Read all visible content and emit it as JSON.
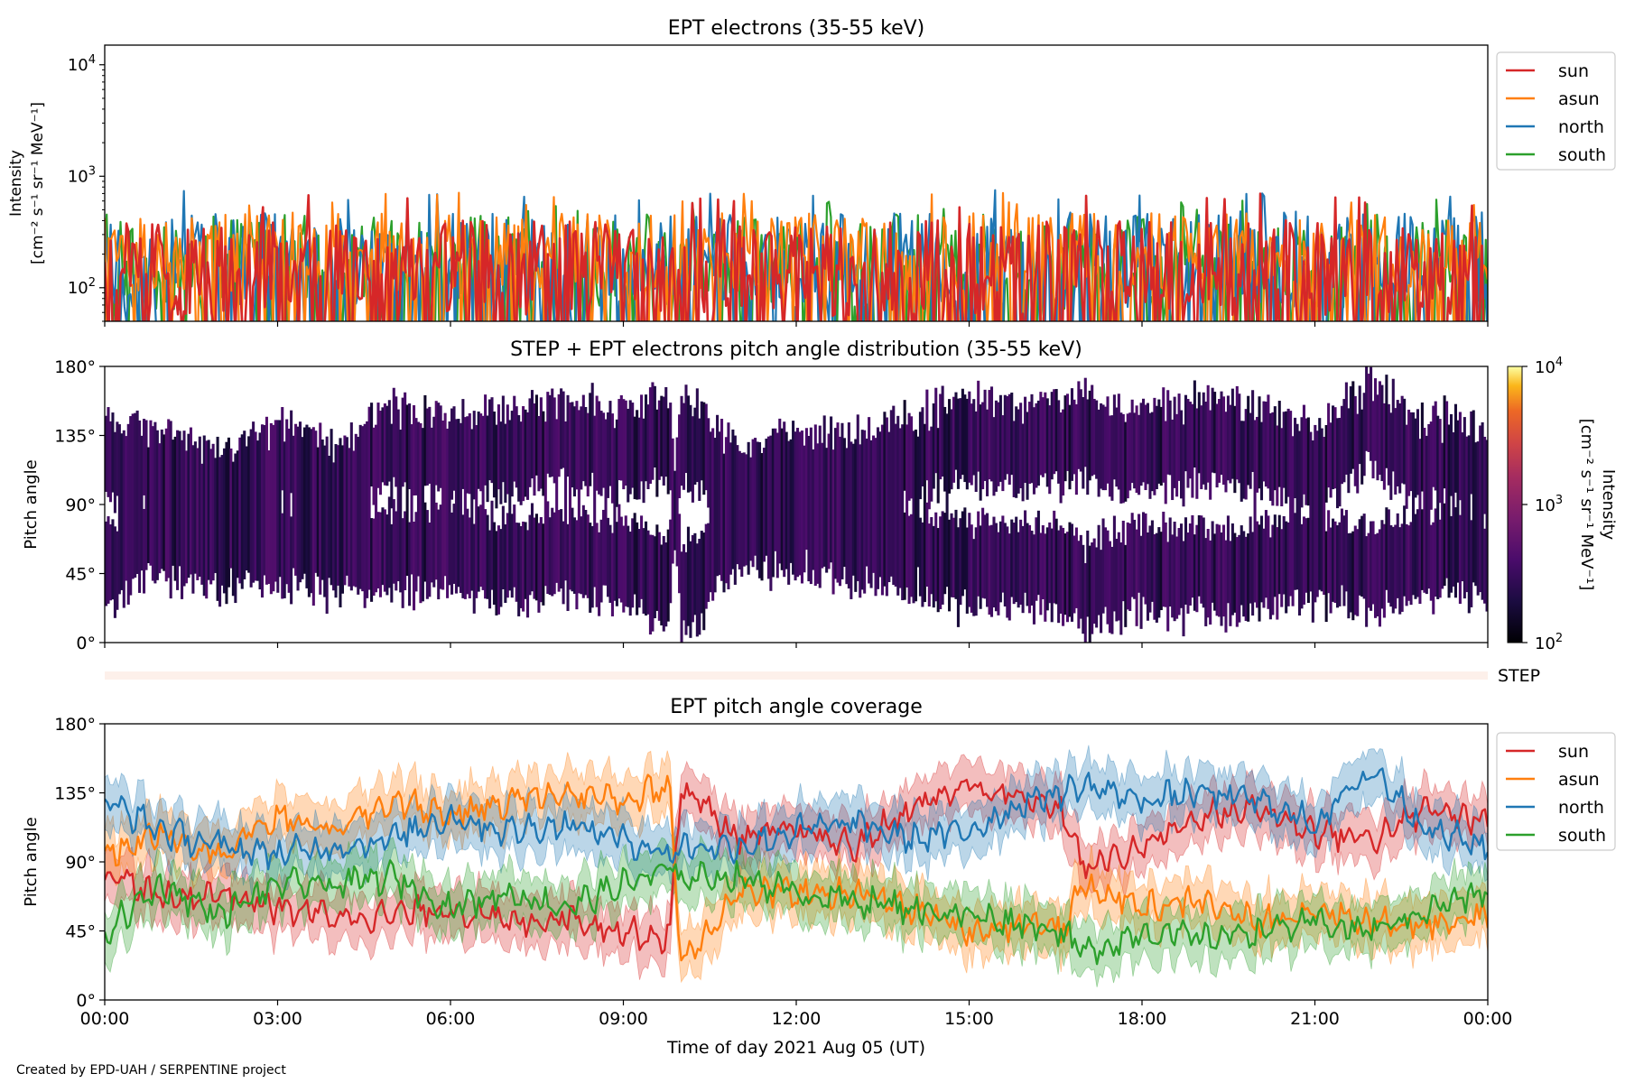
{
  "footer": "Created by EPD-UAH / SERPENTINE project",
  "chart_data": [
    {
      "type": "line",
      "title": "EPT electrons (35-55 keV)",
      "ylabel_line1": "Intensity",
      "ylabel_line2": "[cm⁻² s⁻¹ sr⁻¹ MeV⁻¹]",
      "yscale": "log",
      "ylim": [
        50,
        15000
      ],
      "yticks": [
        {
          "v": 100,
          "base": "10",
          "exp": "2"
        },
        {
          "v": 1000,
          "base": "10",
          "exp": "3"
        },
        {
          "v": 10000,
          "base": "10",
          "exp": "4"
        }
      ],
      "xlim": [
        "00:00",
        "24:00"
      ],
      "legend_placement": "outside-right-top",
      "series": [
        {
          "name": "sun",
          "color": "#d62728",
          "base": 150,
          "spread": 0.55,
          "max": 700
        },
        {
          "name": "asun",
          "color": "#ff7f0e",
          "base": 210,
          "spread": 0.45,
          "max": 720
        },
        {
          "name": "north",
          "color": "#1f77b4",
          "base": 180,
          "spread": 0.55,
          "max": 760
        },
        {
          "name": "south",
          "color": "#2ca02c",
          "base": 170,
          "spread": 0.55,
          "max": 650
        }
      ]
    },
    {
      "type": "heatmap",
      "title": "STEP + EPT electrons pitch angle distribution (35-55 keV)",
      "ylabel": "Pitch angle",
      "ylim": [
        0,
        180
      ],
      "yticks": [
        "0°",
        "45°",
        "90°",
        "135°",
        "180°"
      ],
      "colorbar": {
        "label_line1": "Intensity",
        "label_line2": "[cm⁻² s⁻¹ sr⁻¹ MeV⁻¹]",
        "scale": "log",
        "range": [
          100,
          10000
        ],
        "ticks": [
          {
            "v": 100,
            "base": "10",
            "exp": "2"
          },
          {
            "v": 1000,
            "base": "10",
            "exp": "3"
          },
          {
            "v": 10000,
            "base": "10",
            "exp": "4"
          }
        ],
        "colormap": "inferno"
      },
      "values_range": [
        150,
        450
      ]
    },
    {
      "type": "band",
      "label": "STEP",
      "color": "#fdf0ea"
    },
    {
      "type": "line",
      "title": "EPT pitch angle coverage",
      "ylabel": "Pitch angle",
      "xlabel": "Time of day 2021 Aug 05 (UT)",
      "ylim": [
        0,
        180
      ],
      "yticks": [
        "0°",
        "45°",
        "90°",
        "135°",
        "180°"
      ],
      "xticks": [
        "00:00",
        "03:00",
        "06:00",
        "09:00",
        "12:00",
        "15:00",
        "18:00",
        "21:00",
        "00:00"
      ],
      "legend_placement": "outside-right-top",
      "series": [
        {
          "name": "sun",
          "color": "#d62728",
          "hours": [
            0,
            1,
            2,
            3,
            4,
            5,
            6,
            7,
            8,
            9,
            9.8,
            10,
            11,
            12,
            13,
            14,
            15,
            16,
            16.6,
            17,
            18,
            19,
            20,
            21,
            22,
            23,
            24
          ],
          "values": [
            85,
            65,
            70,
            60,
            55,
            55,
            60,
            50,
            55,
            45,
            40,
            140,
            105,
            110,
            100,
            125,
            140,
            130,
            125,
            85,
            100,
            120,
            125,
            110,
            105,
            125,
            115
          ]
        },
        {
          "name": "asun",
          "color": "#ff7f0e",
          "hours": [
            0,
            1,
            2,
            3,
            4,
            5,
            6,
            7,
            8,
            9,
            9.8,
            10,
            11,
            12,
            13,
            14,
            15,
            16,
            16.6,
            17,
            18,
            19,
            20,
            21,
            22,
            23,
            24
          ],
          "values": [
            95,
            110,
            95,
            120,
            110,
            130,
            120,
            130,
            135,
            130,
            140,
            25,
            70,
            70,
            70,
            60,
            45,
            50,
            45,
            75,
            60,
            65,
            50,
            60,
            50,
            50,
            55
          ]
        },
        {
          "name": "north",
          "color": "#1f77b4",
          "hours": [
            0,
            1,
            2,
            3,
            4,
            5,
            6,
            7,
            8,
            9,
            9.8,
            10,
            11,
            12,
            13,
            14,
            15,
            16,
            16.6,
            17,
            18,
            19,
            20,
            21,
            22,
            23,
            24
          ],
          "values": [
            130,
            110,
            100,
            95,
            100,
            105,
            120,
            110,
            115,
            105,
            95,
            100,
            100,
            110,
            115,
            105,
            110,
            130,
            135,
            140,
            130,
            135,
            130,
            115,
            150,
            110,
            100
          ]
        },
        {
          "name": "south",
          "color": "#2ca02c",
          "hours": [
            0,
            1,
            2,
            3,
            4,
            5,
            6,
            7,
            8,
            9,
            9.8,
            10,
            11,
            12,
            13,
            14,
            15,
            16,
            16.6,
            17,
            18,
            19,
            20,
            21,
            22,
            23,
            24
          ],
          "values": [
            45,
            75,
            55,
            75,
            75,
            80,
            60,
            70,
            60,
            75,
            85,
            80,
            80,
            70,
            65,
            60,
            55,
            50,
            45,
            30,
            45,
            40,
            45,
            50,
            45,
            60,
            70
          ]
        }
      ]
    }
  ]
}
